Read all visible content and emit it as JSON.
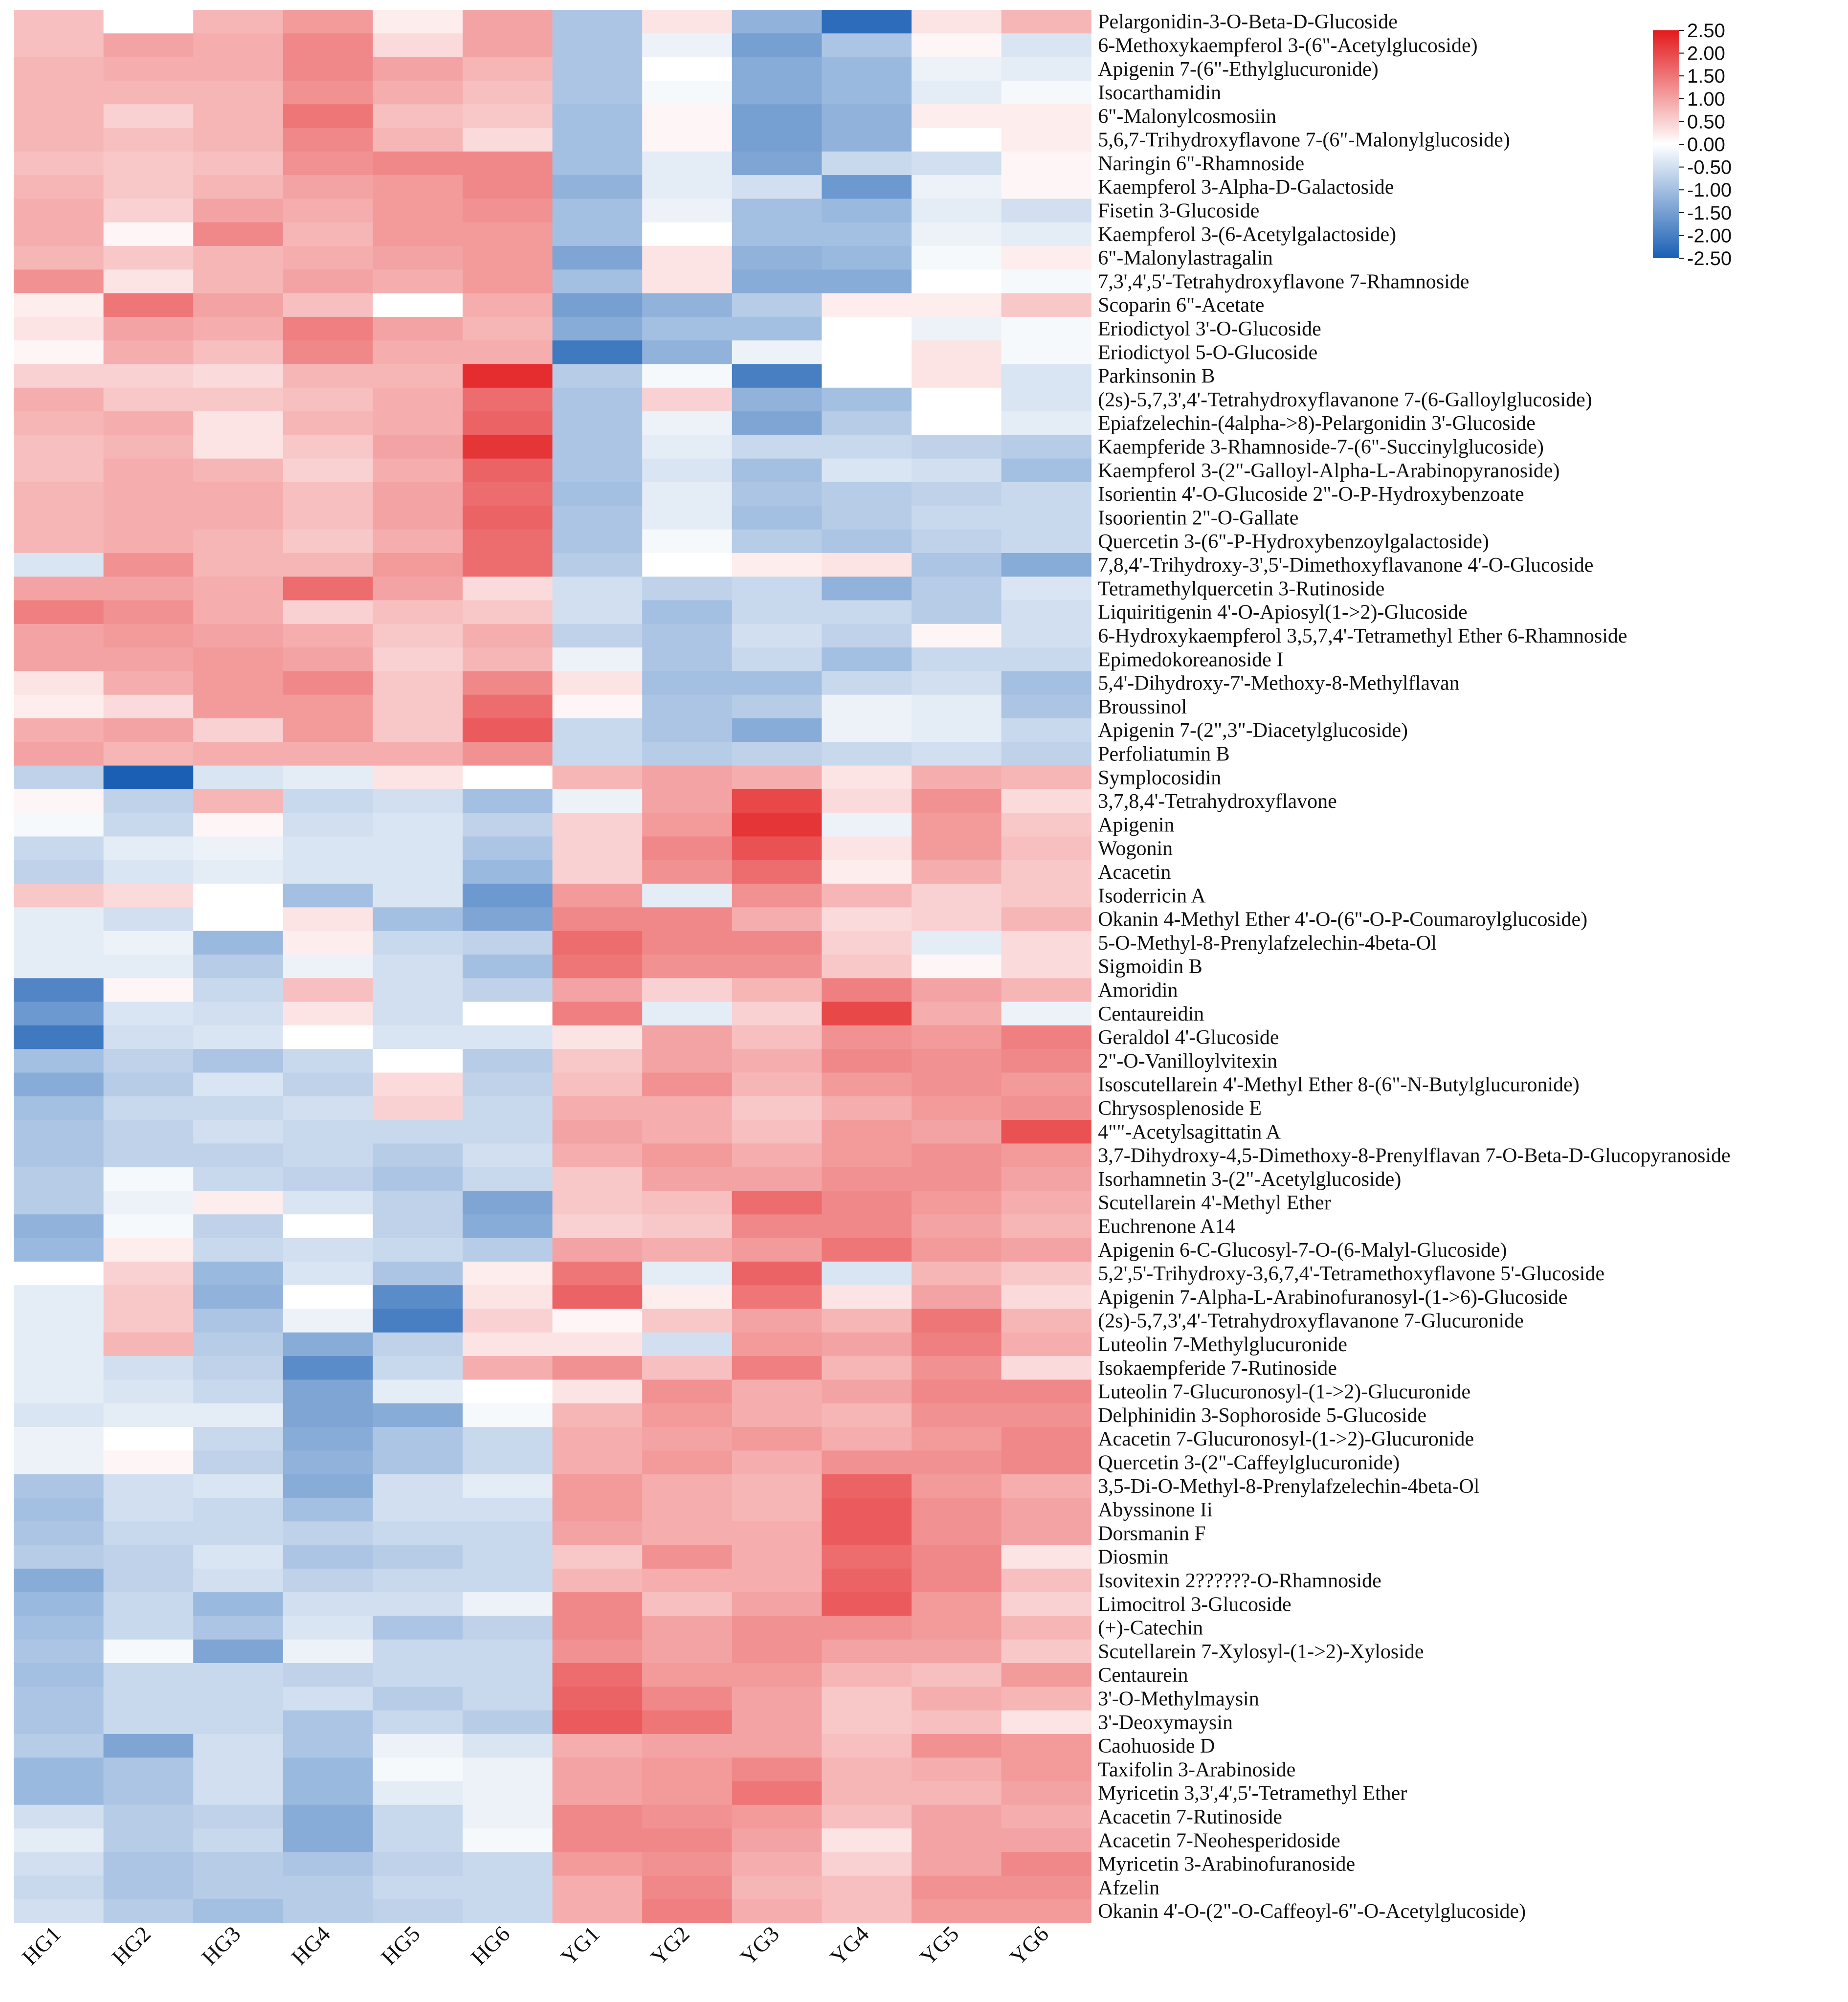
{
  "chart_data": {
    "type": "heatmap",
    "title": "",
    "colormap": {
      "low": "#1a5fb4",
      "mid": "#ffffff",
      "high": "#e31a1c"
    },
    "colorbar": {
      "range": [
        -2.5,
        2.5
      ],
      "tick_values": [
        2.5,
        2.0,
        1.5,
        1.0,
        0.5,
        0.0,
        -0.5,
        -1.0,
        -1.5,
        -2.0,
        -2.5
      ],
      "tick_labels": [
        "2.50",
        "2.00",
        "1.50",
        "1.00",
        "0.50",
        "0.00",
        "-0.50",
        "-1.00",
        "-1.50",
        "-2.00",
        "-2.50"
      ]
    },
    "columns": [
      "HG1",
      "HG2",
      "HG3",
      "HG4",
      "HG5",
      "HG6",
      "YG1",
      "YG2",
      "YG3",
      "YG4",
      "YG5",
      "YG6"
    ],
    "rows": [
      "Pelargonidin-3-O-Beta-D-Glucoside",
      "6-Methoxykaempferol 3-(6\"-Acetylglucoside)",
      "Apigenin 7-(6\"-Ethylglucuronide)",
      "Isocarthamidin",
      "6\"-Malonylcosmosiin",
      "5,6,7-Trihydroxyflavone 7-(6\"-Malonylglucoside)",
      "Naringin 6\"-Rhamnoside",
      "Kaempferol 3-Alpha-D-Galactoside",
      "Fisetin 3-Glucoside",
      "Kaempferol 3-(6-Acetylgalactoside)",
      "6\"-Malonylastragalin",
      "7,3',4',5'-Tetrahydroxyflavone 7-Rhamnoside",
      "Scoparin 6\"-Acetate",
      "Eriodictyol 3'-O-Glucoside",
      "Eriodictyol 5-O-Glucoside",
      "Parkinsonin B",
      "(2s)-5,7,3',4'-Tetrahydroxyflavanone 7-(6-Galloylglucoside)",
      "Epiafzelechin-(4alpha->8)-Pelargonidin 3'-Glucoside",
      "Kaempferide 3-Rhamnoside-7-(6\"-Succinylglucoside)",
      "Kaempferol 3-(2\"-Galloyl-Alpha-L-Arabinopyranoside)",
      "Isorientin 4'-O-Glucoside 2\"-O-P-Hydroxybenzoate",
      "Isoorientin 2\"-O-Gallate",
      "Quercetin 3-(6\"-P-Hydroxybenzoylgalactoside)",
      "7,8,4'-Trihydroxy-3',5'-Dimethoxyflavanone 4'-O-Glucoside",
      "Tetramethylquercetin 3-Rutinoside",
      "Liquiritigenin 4'-O-Apiosyl(1->2)-Glucoside",
      "6-Hydroxykaempferol 3,5,7,4'-Tetramethyl Ether 6-Rhamnoside",
      "Epimedokoreanoside I",
      "5,4'-Dihydroxy-7'-Methoxy-8-Methylflavan",
      "Broussinol",
      "Apigenin 7-(2\",3\"-Diacetylglucoside)",
      "Perfoliatumin B",
      "Symplocosidin",
      "3,7,8,4'-Tetrahydroxyflavone",
      "Apigenin",
      "Wogonin",
      "Acacetin",
      "Isoderricin A",
      "Okanin 4-Methyl Ether 4'-O-(6\"-O-P-Coumaroylglucoside)",
      "5-O-Methyl-8-Prenylafzelechin-4beta-Ol",
      "Sigmoidin B",
      "Amoridin",
      "Centaureidin",
      "Geraldol 4'-Glucoside",
      "2\"-O-Vanilloylvitexin",
      "Isoscutellarein 4'-Methyl Ether 8-(6\"-N-Butylglucuronide)",
      "Chrysosplenoside E",
      "4\"\"-Acetylsagittatin A",
      "3,7-Dihydroxy-4,5-Dimethoxy-8-Prenylflavan 7-O-Beta-D-Glucopyranoside",
      "Isorhamnetin 3-(2\"-Acetylglucoside)",
      "Scutellarein 4'-Methyl Ether",
      "Euchrenone A14",
      "Apigenin 6-C-Glucosyl-7-O-(6-Malyl-Glucoside)",
      "5,2',5'-Trihydroxy-3,6,7,4'-Tetramethoxyflavone 5'-Glucoside",
      "Apigenin 7-Alpha-L-Arabinofuranosyl-(1->6)-Glucoside",
      "(2s)-5,7,3',4'-Tetrahydroxyflavanone 7-Glucuronide",
      "Luteolin 7-Methylglucuronide",
      "Isokaempferide 7-Rutinoside",
      "Luteolin 7-Glucuronosyl-(1->2)-Glucuronide",
      "Delphinidin 3-Sophoroside 5-Glucoside",
      "Acacetin 7-Glucuronosyl-(1->2)-Glucuronide",
      "Quercetin 3-(2\"-Caffeylglucuronide)",
      "3,5-Di-O-Methyl-8-Prenylafzelechin-4beta-Ol",
      "Abyssinone Ii",
      "Dorsmanin F",
      "Diosmin",
      "Isovitexin 2??????-O-Rhamnoside",
      "Limocitrol 3-Glucoside",
      "(+)-Catechin",
      "Scutellarein 7-Xylosyl-(1->2)-Xyloside",
      "Centaurein",
      "3'-O-Methylmaysin",
      "3'-Deoxymaysin",
      "Caohuoside D",
      "Taxifolin 3-Arabinoside",
      "Myricetin 3,3',4',5'-Tetramethyl Ether",
      "Acacetin 7-Rutinoside",
      "Acacetin 7-Neohesperidoside",
      "Myricetin 3-Arabinofuranoside",
      "Afzelin",
      "Okanin 4'-O-(2\"-O-Caffeoyl-6\"-O-Acetylglucoside)"
    ],
    "values": [
      [
        0.7,
        0.0,
        0.8,
        1.1,
        0.2,
        1.0,
        -0.9,
        0.3,
        -1.2,
        -2.3,
        0.3,
        0.8
      ],
      [
        0.7,
        1.0,
        0.9,
        1.3,
        0.4,
        1.0,
        -0.9,
        -0.2,
        -1.5,
        -0.9,
        0.1,
        -0.4
      ],
      [
        0.8,
        0.9,
        0.9,
        1.3,
        1.0,
        0.8,
        -0.9,
        0.0,
        -1.3,
        -1.1,
        -0.2,
        -0.3
      ],
      [
        0.8,
        0.8,
        0.8,
        1.2,
        0.9,
        0.7,
        -0.9,
        -0.1,
        -1.3,
        -1.1,
        -0.3,
        -0.1
      ],
      [
        0.8,
        0.5,
        0.8,
        1.5,
        0.7,
        0.6,
        -1.0,
        0.1,
        -1.5,
        -1.2,
        0.2,
        0.2
      ],
      [
        0.8,
        0.7,
        0.8,
        1.3,
        0.8,
        0.4,
        -1.0,
        0.1,
        -1.5,
        -1.2,
        0.0,
        0.2
      ],
      [
        0.7,
        0.6,
        0.7,
        1.2,
        1.3,
        1.3,
        -1.0,
        -0.3,
        -1.4,
        -0.6,
        -0.5,
        0.1
      ],
      [
        0.8,
        0.6,
        0.8,
        1.0,
        1.1,
        1.3,
        -1.2,
        -0.3,
        -0.5,
        -1.6,
        -0.2,
        0.1
      ],
      [
        0.9,
        0.5,
        1.0,
        0.9,
        1.1,
        1.2,
        -1.0,
        -0.2,
        -1.0,
        -1.1,
        -0.3,
        -0.5
      ],
      [
        0.9,
        0.1,
        1.3,
        0.8,
        1.1,
        1.1,
        -1.0,
        0.0,
        -1.0,
        -1.0,
        -0.2,
        -0.3
      ],
      [
        0.8,
        0.6,
        0.8,
        0.9,
        1.0,
        1.1,
        -1.4,
        0.3,
        -1.2,
        -1.1,
        -0.1,
        0.2
      ],
      [
        1.2,
        0.3,
        0.8,
        1.0,
        0.9,
        1.1,
        -1.0,
        0.3,
        -1.3,
        -1.3,
        0.0,
        -0.1
      ],
      [
        0.2,
        1.5,
        1.0,
        0.7,
        0.0,
        0.9,
        -1.5,
        -1.2,
        -0.8,
        0.2,
        0.2,
        0.6
      ],
      [
        0.3,
        1.0,
        0.9,
        1.4,
        1.0,
        0.8,
        -1.3,
        -1.0,
        -1.0,
        0.0,
        -0.2,
        -0.1
      ],
      [
        0.1,
        0.9,
        0.7,
        1.3,
        0.9,
        0.9,
        -2.1,
        -1.2,
        -0.2,
        0.0,
        0.3,
        -0.1
      ],
      [
        0.5,
        0.5,
        0.4,
        0.8,
        0.8,
        2.3,
        -0.8,
        -0.1,
        -2.0,
        0.0,
        0.3,
        -0.4
      ],
      [
        0.9,
        0.6,
        0.6,
        0.7,
        0.9,
        1.6,
        -0.9,
        0.5,
        -1.2,
        -1.0,
        0.0,
        -0.4
      ],
      [
        0.8,
        0.9,
        0.3,
        0.8,
        0.9,
        1.7,
        -0.9,
        -0.2,
        -1.4,
        -0.8,
        0.0,
        -0.3
      ],
      [
        0.7,
        0.8,
        0.3,
        0.6,
        1.0,
        2.2,
        -0.9,
        -0.3,
        -0.6,
        -0.6,
        -0.7,
        -0.8
      ],
      [
        0.7,
        0.9,
        0.8,
        0.5,
        0.9,
        1.7,
        -0.9,
        -0.4,
        -1.0,
        -0.4,
        -0.5,
        -1.0
      ],
      [
        0.8,
        0.9,
        0.9,
        0.7,
        1.0,
        1.6,
        -1.0,
        -0.3,
        -0.9,
        -0.8,
        -0.7,
        -0.6
      ],
      [
        0.8,
        0.9,
        0.9,
        0.7,
        1.0,
        1.7,
        -0.9,
        -0.3,
        -1.0,
        -0.8,
        -0.6,
        -0.6
      ],
      [
        0.8,
        0.9,
        0.8,
        0.6,
        0.9,
        1.6,
        -0.9,
        -0.1,
        -0.8,
        -0.9,
        -0.7,
        -0.6
      ],
      [
        -0.4,
        1.2,
        0.8,
        0.8,
        1.1,
        1.6,
        -0.8,
        0.0,
        0.2,
        0.3,
        -0.9,
        -1.3
      ],
      [
        1.0,
        1.0,
        0.9,
        1.6,
        1.0,
        0.4,
        -0.5,
        -0.7,
        -0.6,
        -1.2,
        -0.8,
        -0.4
      ],
      [
        1.4,
        1.2,
        0.9,
        0.5,
        0.7,
        0.6,
        -0.5,
        -1.0,
        -0.6,
        -0.6,
        -0.8,
        -0.5
      ],
      [
        1.0,
        1.1,
        1.0,
        0.9,
        0.6,
        0.9,
        -0.7,
        -0.9,
        -0.5,
        -0.7,
        0.1,
        -0.5
      ],
      [
        1.0,
        1.0,
        1.1,
        1.0,
        0.5,
        0.8,
        -0.2,
        -0.9,
        -0.6,
        -1.0,
        -0.6,
        -0.6
      ],
      [
        0.3,
        0.9,
        1.1,
        1.3,
        0.6,
        1.3,
        0.3,
        -1.0,
        -1.0,
        -0.6,
        -0.5,
        -1.0
      ],
      [
        0.2,
        0.4,
        1.1,
        1.1,
        0.6,
        1.6,
        0.1,
        -0.9,
        -0.8,
        -0.2,
        -0.3,
        -0.9
      ],
      [
        0.9,
        1.0,
        0.5,
        1.1,
        0.6,
        1.8,
        -0.6,
        -0.9,
        -1.3,
        -0.2,
        -0.3,
        -0.6
      ],
      [
        1.0,
        0.8,
        0.9,
        0.9,
        0.9,
        1.2,
        -0.6,
        -0.8,
        -0.7,
        -0.6,
        -0.5,
        -0.7
      ],
      [
        -0.7,
        -2.6,
        -0.4,
        -0.3,
        0.3,
        0.0,
        0.8,
        1.0,
        0.9,
        0.3,
        0.9,
        0.8
      ],
      [
        0.1,
        -0.7,
        0.8,
        -0.6,
        -0.5,
        -1.0,
        -0.2,
        1.0,
        2.0,
        0.4,
        1.2,
        0.4
      ],
      [
        -0.1,
        -0.6,
        0.1,
        -0.5,
        -0.4,
        -0.7,
        0.5,
        1.1,
        2.2,
        -0.2,
        1.1,
        0.6
      ],
      [
        -0.6,
        -0.3,
        -0.2,
        -0.4,
        -0.4,
        -0.9,
        0.5,
        1.3,
        1.9,
        0.3,
        1.1,
        0.7
      ],
      [
        -0.7,
        -0.4,
        -0.3,
        -0.4,
        -0.4,
        -1.1,
        0.5,
        1.2,
        1.6,
        0.2,
        0.9,
        0.6
      ],
      [
        0.6,
        0.4,
        0.0,
        -1.0,
        -0.4,
        -1.6,
        1.1,
        -0.3,
        1.2,
        0.8,
        0.5,
        0.6
      ],
      [
        -0.3,
        -0.5,
        0.0,
        0.3,
        -1.0,
        -1.4,
        1.3,
        1.3,
        0.9,
        0.4,
        0.5,
        0.8
      ],
      [
        -0.3,
        -0.2,
        -1.1,
        0.2,
        -0.6,
        -0.7,
        1.6,
        1.3,
        1.3,
        0.5,
        -0.3,
        0.4
      ],
      [
        -0.3,
        -0.3,
        -0.8,
        -0.2,
        -0.5,
        -1.0,
        1.5,
        1.2,
        1.2,
        0.6,
        0.1,
        0.4
      ],
      [
        -1.9,
        0.1,
        -0.6,
        0.7,
        -0.5,
        -0.7,
        1.0,
        0.5,
        0.8,
        1.4,
        1.0,
        0.8
      ],
      [
        -1.6,
        -0.4,
        -0.5,
        0.3,
        -0.5,
        0.0,
        1.4,
        -0.3,
        0.5,
        2.0,
        0.9,
        -0.2
      ],
      [
        -2.1,
        -0.5,
        -0.4,
        0.0,
        -0.4,
        -0.4,
        0.3,
        1.0,
        0.7,
        1.2,
        1.1,
        1.4
      ],
      [
        -1.0,
        -0.7,
        -0.9,
        -0.6,
        0.0,
        -0.8,
        0.6,
        1.0,
        0.9,
        1.3,
        1.2,
        1.3
      ],
      [
        -1.3,
        -0.8,
        -0.4,
        -0.7,
        0.4,
        -0.7,
        0.7,
        1.2,
        0.8,
        1.1,
        1.2,
        1.1
      ],
      [
        -1.0,
        -0.6,
        -0.6,
        -0.5,
        0.5,
        -0.6,
        0.9,
        0.9,
        0.6,
        0.9,
        1.1,
        1.2
      ],
      [
        -0.9,
        -0.7,
        -0.5,
        -0.6,
        -0.6,
        -0.6,
        1.0,
        0.9,
        0.7,
        1.1,
        1.0,
        1.9
      ],
      [
        -0.9,
        -0.7,
        -0.7,
        -0.6,
        -0.8,
        -0.5,
        0.9,
        1.1,
        0.9,
        1.1,
        1.2,
        1.1
      ],
      [
        -0.8,
        -0.1,
        -0.6,
        -0.7,
        -0.9,
        -0.6,
        0.6,
        1.0,
        1.0,
        1.2,
        1.2,
        1.0
      ],
      [
        -0.8,
        -0.2,
        0.2,
        -0.4,
        -0.7,
        -1.4,
        0.6,
        0.7,
        1.6,
        1.3,
        1.1,
        0.9
      ],
      [
        -1.2,
        -0.1,
        -0.7,
        0.0,
        -0.7,
        -1.3,
        0.5,
        0.6,
        1.3,
        1.3,
        1.0,
        0.8
      ],
      [
        -1.1,
        0.2,
        -0.6,
        -0.5,
        -0.6,
        -0.8,
        1.0,
        0.9,
        1.1,
        1.5,
        1.1,
        1.0
      ],
      [
        0.0,
        0.5,
        -1.1,
        -0.4,
        -0.9,
        0.2,
        1.5,
        -0.3,
        1.7,
        -0.4,
        0.8,
        0.6
      ],
      [
        -0.3,
        0.6,
        -1.2,
        0.0,
        -1.8,
        0.3,
        1.7,
        0.2,
        1.5,
        0.3,
        1.0,
        0.4
      ],
      [
        -0.3,
        0.6,
        -0.9,
        -0.2,
        -2.0,
        0.5,
        0.1,
        0.6,
        1.0,
        0.8,
        1.5,
        0.8
      ],
      [
        -0.3,
        0.8,
        -0.8,
        -1.3,
        -0.7,
        0.3,
        0.3,
        -0.5,
        1.1,
        1.0,
        1.4,
        0.9
      ],
      [
        -0.3,
        -0.5,
        -0.7,
        -1.8,
        -0.6,
        0.9,
        1.2,
        0.7,
        1.4,
        0.8,
        1.2,
        0.4
      ],
      [
        -0.3,
        -0.4,
        -0.6,
        -1.4,
        -0.3,
        0.0,
        0.3,
        1.2,
        0.9,
        1.0,
        1.3,
        1.3
      ],
      [
        -0.4,
        -0.3,
        -0.3,
        -1.4,
        -1.3,
        -0.1,
        0.8,
        1.1,
        0.9,
        0.8,
        1.2,
        1.2
      ],
      [
        -0.2,
        0.0,
        -0.6,
        -1.3,
        -0.9,
        -0.6,
        0.9,
        1.0,
        1.1,
        0.9,
        1.1,
        1.3
      ],
      [
        -0.2,
        0.1,
        -0.7,
        -1.2,
        -0.9,
        -0.6,
        0.9,
        1.1,
        0.9,
        1.2,
        1.2,
        1.3
      ],
      [
        -0.9,
        -0.5,
        -0.4,
        -1.3,
        -0.5,
        -0.3,
        1.1,
        0.9,
        0.8,
        1.7,
        1.1,
        0.9
      ],
      [
        -1.0,
        -0.5,
        -0.6,
        -1.0,
        -0.5,
        -0.5,
        1.1,
        0.9,
        0.8,
        1.8,
        1.2,
        1.0
      ],
      [
        -0.9,
        -0.6,
        -0.6,
        -0.7,
        -0.6,
        -0.6,
        1.0,
        0.9,
        0.9,
        1.8,
        1.2,
        1.0
      ],
      [
        -0.8,
        -0.7,
        -0.4,
        -0.9,
        -0.8,
        -0.6,
        0.6,
        1.2,
        0.9,
        1.6,
        1.3,
        0.3
      ],
      [
        -1.3,
        -0.7,
        -0.5,
        -0.7,
        -0.6,
        -0.6,
        0.8,
        0.9,
        0.9,
        1.7,
        1.3,
        0.7
      ],
      [
        -1.1,
        -0.6,
        -1.1,
        -0.5,
        -0.5,
        -0.2,
        1.3,
        0.7,
        1.0,
        1.8,
        1.1,
        0.5
      ],
      [
        -1.0,
        -0.6,
        -0.9,
        -0.4,
        -0.9,
        -0.7,
        1.3,
        1.0,
        1.2,
        1.2,
        1.1,
        0.8
      ],
      [
        -0.9,
        -0.1,
        -1.4,
        -0.2,
        -0.6,
        -0.6,
        1.2,
        1.0,
        1.2,
        1.0,
        1.0,
        0.6
      ],
      [
        -1.0,
        -0.6,
        -0.6,
        -0.7,
        -0.6,
        -0.6,
        1.6,
        1.1,
        1.1,
        0.8,
        0.7,
        1.1
      ],
      [
        -0.9,
        -0.6,
        -0.6,
        -0.5,
        -0.8,
        -0.6,
        1.7,
        1.3,
        1.0,
        0.6,
        0.9,
        0.8
      ],
      [
        -0.9,
        -0.6,
        -0.6,
        -0.9,
        -0.6,
        -0.8,
        1.8,
        1.5,
        1.0,
        0.6,
        0.7,
        0.3
      ],
      [
        -0.8,
        -1.4,
        -0.5,
        -0.9,
        -0.2,
        -0.4,
        0.9,
        1.0,
        1.0,
        0.7,
        1.2,
        1.1
      ],
      [
        -1.1,
        -0.9,
        -0.5,
        -1.1,
        -0.1,
        -0.2,
        1.0,
        1.1,
        1.3,
        0.8,
        0.9,
        1.1
      ],
      [
        -1.1,
        -0.9,
        -0.5,
        -1.1,
        -0.3,
        -0.2,
        1.0,
        1.1,
        1.5,
        0.8,
        0.8,
        1.0
      ],
      [
        -0.5,
        -0.8,
        -0.7,
        -1.3,
        -0.6,
        -0.2,
        1.3,
        1.2,
        1.1,
        0.7,
        1.0,
        0.9
      ],
      [
        -0.3,
        -0.8,
        -0.6,
        -1.3,
        -0.6,
        -0.1,
        1.3,
        1.3,
        1.0,
        0.3,
        1.0,
        1.0
      ],
      [
        -0.5,
        -0.9,
        -0.8,
        -0.9,
        -0.7,
        -0.6,
        1.1,
        1.2,
        0.9,
        0.5,
        1.0,
        1.3
      ],
      [
        -0.6,
        -0.9,
        -0.8,
        -0.8,
        -0.6,
        -0.6,
        0.9,
        1.3,
        0.8,
        0.7,
        1.2,
        1.2
      ],
      [
        -0.5,
        -0.8,
        -1.0,
        -0.8,
        -0.7,
        -0.6,
        0.9,
        1.4,
        0.9,
        0.7,
        1.1,
        1.1
      ]
    ]
  }
}
